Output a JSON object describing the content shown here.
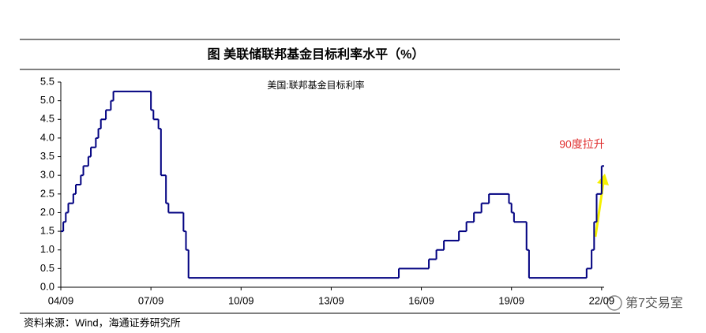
{
  "chart_data": {
    "type": "step-line",
    "title": "图  美联储联邦基金目标利率水平（%）",
    "subtitle": "美国:联邦基金目标利率",
    "annotation": "90度拉升",
    "source": "资料来源：Wind，海通证券研究所",
    "watermark": "第7交易室",
    "series": [
      {
        "name": "美国:联邦基金目标利率",
        "color": "#000080",
        "x": [
          2004.667,
          2004.75,
          2004.833,
          2004.917,
          2005.083,
          2005.167,
          2005.333,
          2005.417,
          2005.583,
          2005.667,
          2005.833,
          2005.917,
          2006.0,
          2006.167,
          2006.333,
          2006.417,
          2007.667,
          2007.75,
          2007.917,
          2008.0,
          2008.167,
          2008.25,
          2008.75,
          2008.833,
          2008.917,
          2015.917,
          2016.917,
          2017.167,
          2017.417,
          2017.917,
          2018.167,
          2018.417,
          2018.667,
          2018.917,
          2019.583,
          2019.667,
          2019.75,
          2020.167,
          2020.25,
          2022.167,
          2022.333,
          2022.417,
          2022.5,
          2022.667
        ],
        "values": [
          1.5,
          1.75,
          2.0,
          2.25,
          2.5,
          2.75,
          3.0,
          3.25,
          3.5,
          3.75,
          4.0,
          4.25,
          4.5,
          4.75,
          5.0,
          5.25,
          4.75,
          4.5,
          4.25,
          3.0,
          2.25,
          2.0,
          1.5,
          1.0,
          0.25,
          0.5,
          0.75,
          1.0,
          1.25,
          1.5,
          1.75,
          2.0,
          2.25,
          2.5,
          2.25,
          2.0,
          1.75,
          1.0,
          0.25,
          0.5,
          1.0,
          1.75,
          2.5,
          3.25
        ]
      }
    ],
    "xlim": [
      2004.667,
      2022.75
    ],
    "xticks": [
      {
        "value": 2004.667,
        "label": "04/09"
      },
      {
        "value": 2007.667,
        "label": "07/09"
      },
      {
        "value": 2010.667,
        "label": "10/09"
      },
      {
        "value": 2013.667,
        "label": "13/09"
      },
      {
        "value": 2016.667,
        "label": "16/09"
      },
      {
        "value": 2019.667,
        "label": "19/09"
      },
      {
        "value": 2022.667,
        "label": "22/09"
      }
    ],
    "ylim": [
      0,
      5.5
    ],
    "yticks": [
      {
        "value": 0,
        "label": "0.0"
      },
      {
        "value": 0.5,
        "label": "0.5"
      },
      {
        "value": 1,
        "label": "1.0"
      },
      {
        "value": 1.5,
        "label": "1.5"
      },
      {
        "value": 2,
        "label": "2.0"
      },
      {
        "value": 2.5,
        "label": "2.5"
      },
      {
        "value": 3,
        "label": "3.0"
      },
      {
        "value": 3.5,
        "label": "3.5"
      },
      {
        "value": 4,
        "label": "4.0"
      },
      {
        "value": 4.5,
        "label": "4.5"
      },
      {
        "value": 5,
        "label": "5.0"
      },
      {
        "value": 5.5,
        "label": "5.5"
      }
    ],
    "grid": false
  }
}
